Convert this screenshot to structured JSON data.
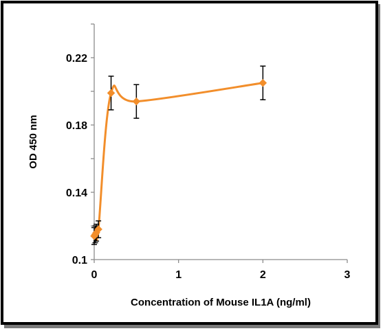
{
  "chart_data": {
    "type": "scatter",
    "title": "",
    "xlabel": "Concentration of Mouse IL1A (ng/ml)",
    "ylabel": "OD  450 nm",
    "xlim": [
      0,
      3
    ],
    "ylim": [
      0.1,
      0.24
    ],
    "x_ticks": [
      0,
      1,
      2,
      3
    ],
    "y_ticks": [
      0.1,
      0.14,
      0.18,
      0.22
    ],
    "x_tick_labels": [
      "0",
      "1",
      "2",
      "3"
    ],
    "y_tick_labels": [
      "0.1",
      "0.14",
      "0.18",
      "0.22"
    ],
    "grid": false,
    "legend": "none",
    "smooth_line": true,
    "series": [
      {
        "color": "#f28e2b",
        "marker": "diamond",
        "points": [
          {
            "x": 0.0,
            "y": 0.114,
            "err": 0.005
          },
          {
            "x": 0.0125,
            "y": 0.115,
            "err": 0.005
          },
          {
            "x": 0.025,
            "y": 0.116,
            "err": 0.005
          },
          {
            "x": 0.05,
            "y": 0.118,
            "err": 0.005
          },
          {
            "x": 0.2,
            "y": 0.199,
            "err": 0.01
          },
          {
            "x": 0.5,
            "y": 0.194,
            "err": 0.01
          },
          {
            "x": 2.0,
            "y": 0.205,
            "err": 0.01
          }
        ]
      }
    ]
  }
}
